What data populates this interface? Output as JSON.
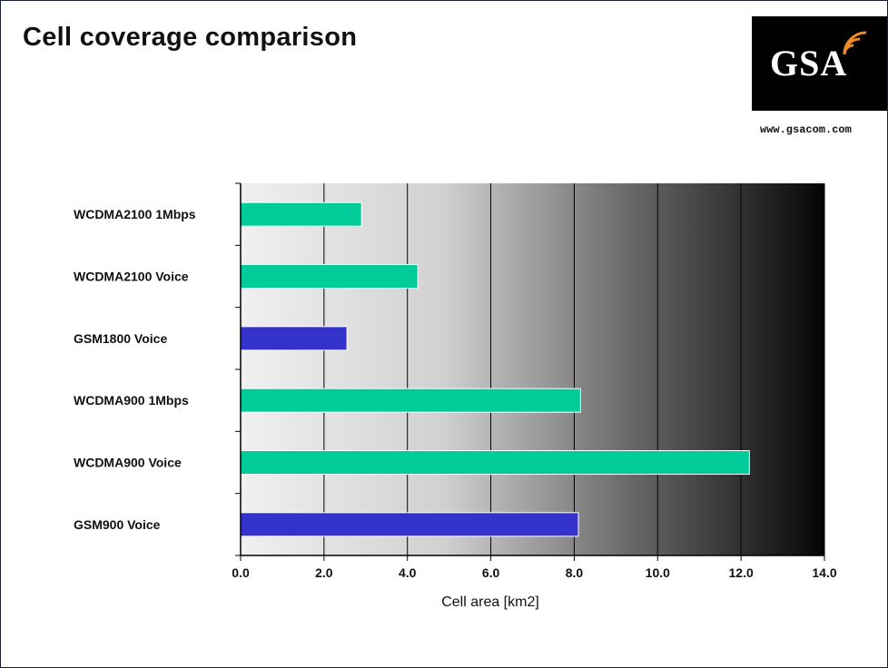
{
  "slide": {
    "title": "Cell coverage comparison",
    "logo_text": "GSA",
    "website": "www.gsacom.com"
  },
  "chart_data": {
    "type": "bar",
    "orientation": "horizontal",
    "categories": [
      "WCDMA2100 1Mbps",
      "WCDMA2100 Voice",
      "GSM1800 Voice",
      "WCDMA900 1Mbps",
      "WCDMA900 Voice",
      "GSM900 Voice"
    ],
    "values": [
      2.9,
      4.25,
      2.55,
      8.15,
      12.2,
      8.1
    ],
    "bar_colors": [
      "#00cc99",
      "#00cc99",
      "#3333cc",
      "#00cc99",
      "#00cc99",
      "#3333cc"
    ],
    "xlabel": "Cell area [km2]",
    "ylabel": "",
    "xlim": [
      0,
      14
    ],
    "xticks": [
      "0.0",
      "2.0",
      "4.0",
      "6.0",
      "8.0",
      "10.0",
      "12.0",
      "14.0"
    ],
    "grid": true,
    "background": "gradient light-gray to black (left to right)"
  },
  "colors": {
    "wcdma_bar": "#00cc99",
    "gsm_bar": "#3333cc",
    "frame": "#1d1d3f"
  }
}
